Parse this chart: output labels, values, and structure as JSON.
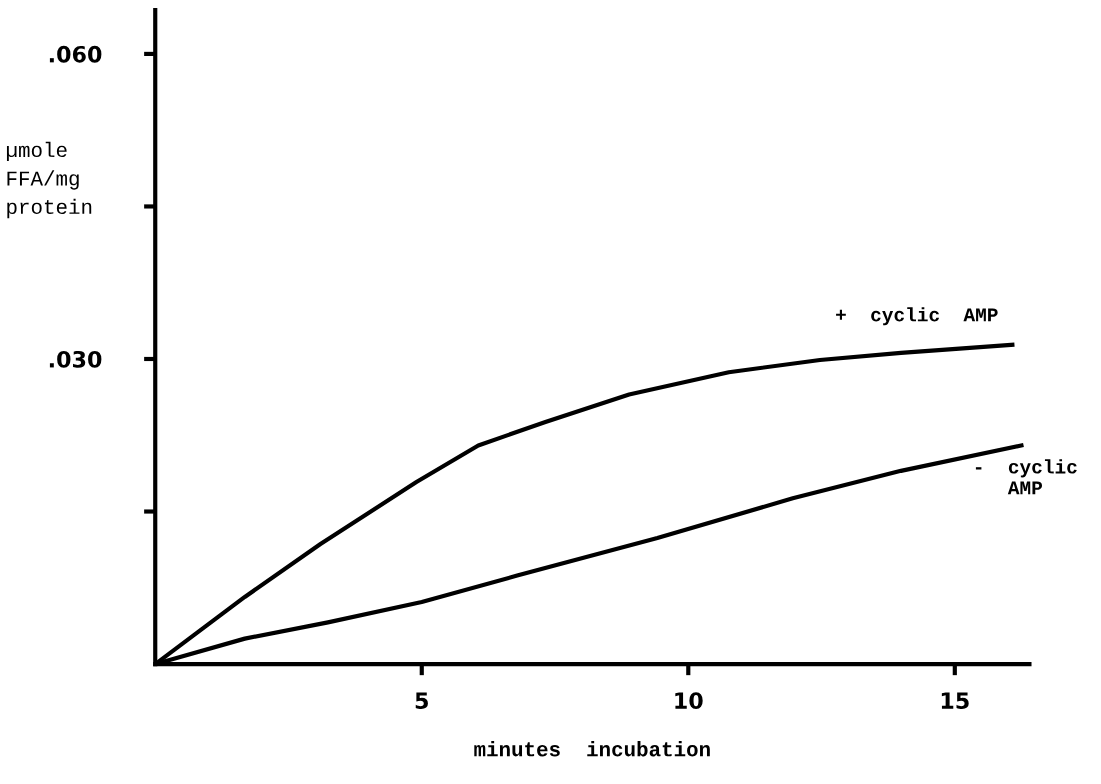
{
  "chart_data": {
    "type": "line",
    "xlabel": "minutes  incubation",
    "ylabel": "µmole\nFFA/mg\nprotein",
    "series": [
      {
        "name": "+  cyclic  AMP",
        "color": "#000000",
        "x": [
          0,
          1.68,
          3.1,
          4.9,
          6.06,
          7.32,
          8.89,
          10.76,
          12.47,
          13.99,
          16.08
        ],
        "values": [
          0,
          0.0066,
          0.0118,
          0.0179,
          0.0215,
          0.0238,
          0.0265,
          0.0287,
          0.0299,
          0.0306,
          0.0314
        ]
      },
      {
        "name": "-  cyclic\n   AMP",
        "color": "#000000",
        "x": [
          0,
          1.68,
          3.24,
          5.0,
          6.79,
          9.42,
          11.96,
          13.99,
          16.25
        ],
        "values": [
          0,
          0.0025,
          0.0041,
          0.0061,
          0.0087,
          0.0124,
          0.0163,
          0.019,
          0.0215
        ]
      }
    ],
    "xlim": [
      0,
      16.4
    ],
    "ylim": [
      0,
      0.0643
    ],
    "xticks": [
      5,
      10,
      15
    ],
    "yticks": [
      {
        "value": 0.015,
        "label": null
      },
      {
        "value": 0.03,
        "label": ".030"
      },
      {
        "value": 0.045,
        "label": null
      },
      {
        "value": 0.06,
        "label": ".060"
      }
    ],
    "grid": false,
    "legend": false,
    "marker": "none",
    "line_style": "solid"
  }
}
